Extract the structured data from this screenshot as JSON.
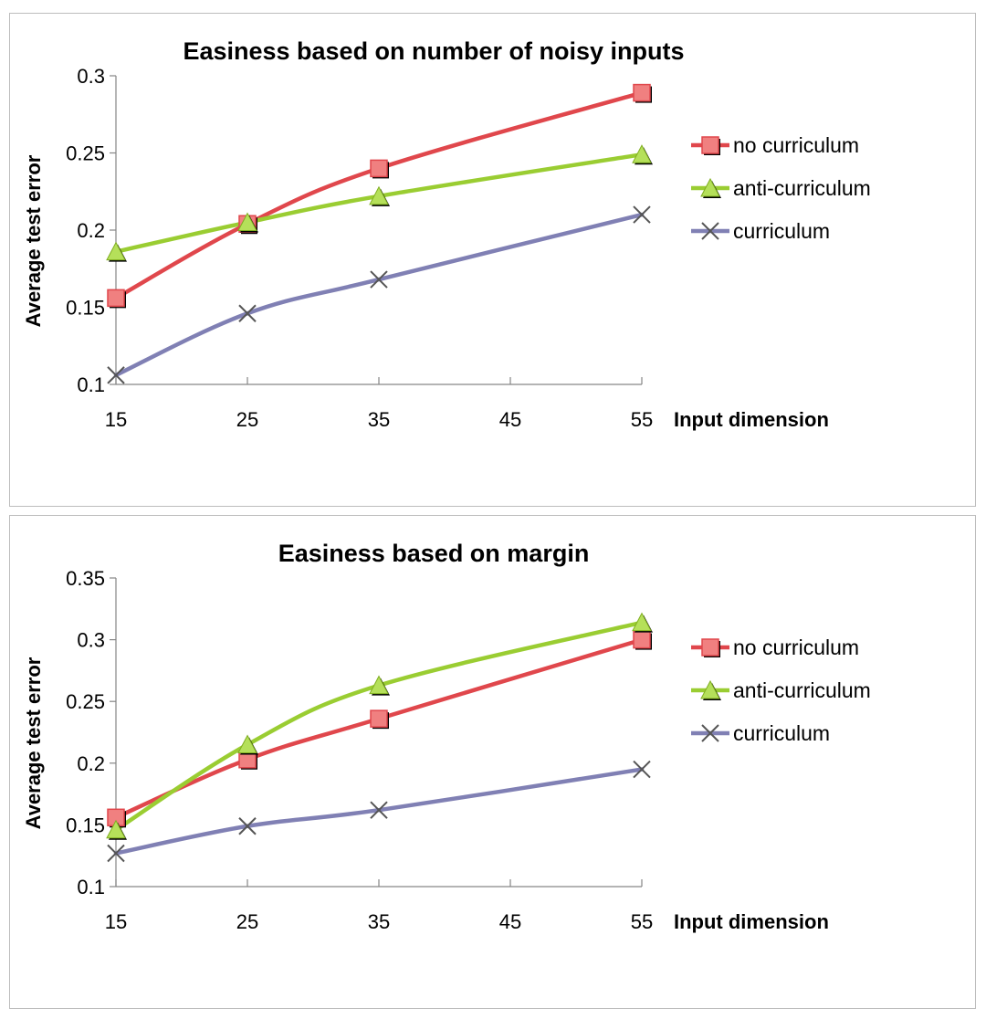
{
  "chart_data": [
    {
      "type": "line",
      "title": "Easiness based on number of noisy inputs",
      "xlabel": "Input dimension",
      "ylabel": "Average test error",
      "x_ticks": [
        "15",
        "25",
        "35",
        "45",
        "55"
      ],
      "xlim": [
        15,
        55
      ],
      "y_ticks": [
        "0.1",
        "0.15",
        "0.2",
        "0.25",
        "0.3"
      ],
      "ylim": [
        0.1,
        0.3
      ],
      "grid": false,
      "legend_position": "right",
      "x": [
        15,
        25,
        35,
        55
      ],
      "series": [
        {
          "name": "no curriculum",
          "values": [
            0.156,
            0.204,
            0.24,
            0.289
          ],
          "color": "#e0474c",
          "marker": "square"
        },
        {
          "name": "anti-curriculum",
          "values": [
            0.186,
            0.205,
            0.222,
            0.249
          ],
          "color": "#9acd32",
          "marker": "triangle"
        },
        {
          "name": "curriculum",
          "values": [
            0.106,
            0.146,
            0.168,
            0.21
          ],
          "color": "#8080b4",
          "marker": "x"
        }
      ]
    },
    {
      "type": "line",
      "title": "Easiness based on margin",
      "xlabel": "Input dimension",
      "ylabel": "Average test error",
      "x_ticks": [
        "15",
        "25",
        "35",
        "45",
        "55"
      ],
      "xlim": [
        15,
        55
      ],
      "y_ticks": [
        "0.1",
        "0.15",
        "0.2",
        "0.25",
        "0.3",
        "0.35"
      ],
      "ylim": [
        0.1,
        0.35
      ],
      "grid": false,
      "legend_position": "right",
      "x": [
        15,
        25,
        35,
        55
      ],
      "series": [
        {
          "name": "no curriculum",
          "values": [
            0.156,
            0.203,
            0.236,
            0.3
          ],
          "color": "#e0474c",
          "marker": "square"
        },
        {
          "name": "anti-curriculum",
          "values": [
            0.146,
            0.215,
            0.263,
            0.314
          ],
          "color": "#9acd32",
          "marker": "triangle"
        },
        {
          "name": "curriculum",
          "values": [
            0.127,
            0.149,
            0.162,
            0.195
          ],
          "color": "#8080b4",
          "marker": "x"
        }
      ]
    }
  ]
}
